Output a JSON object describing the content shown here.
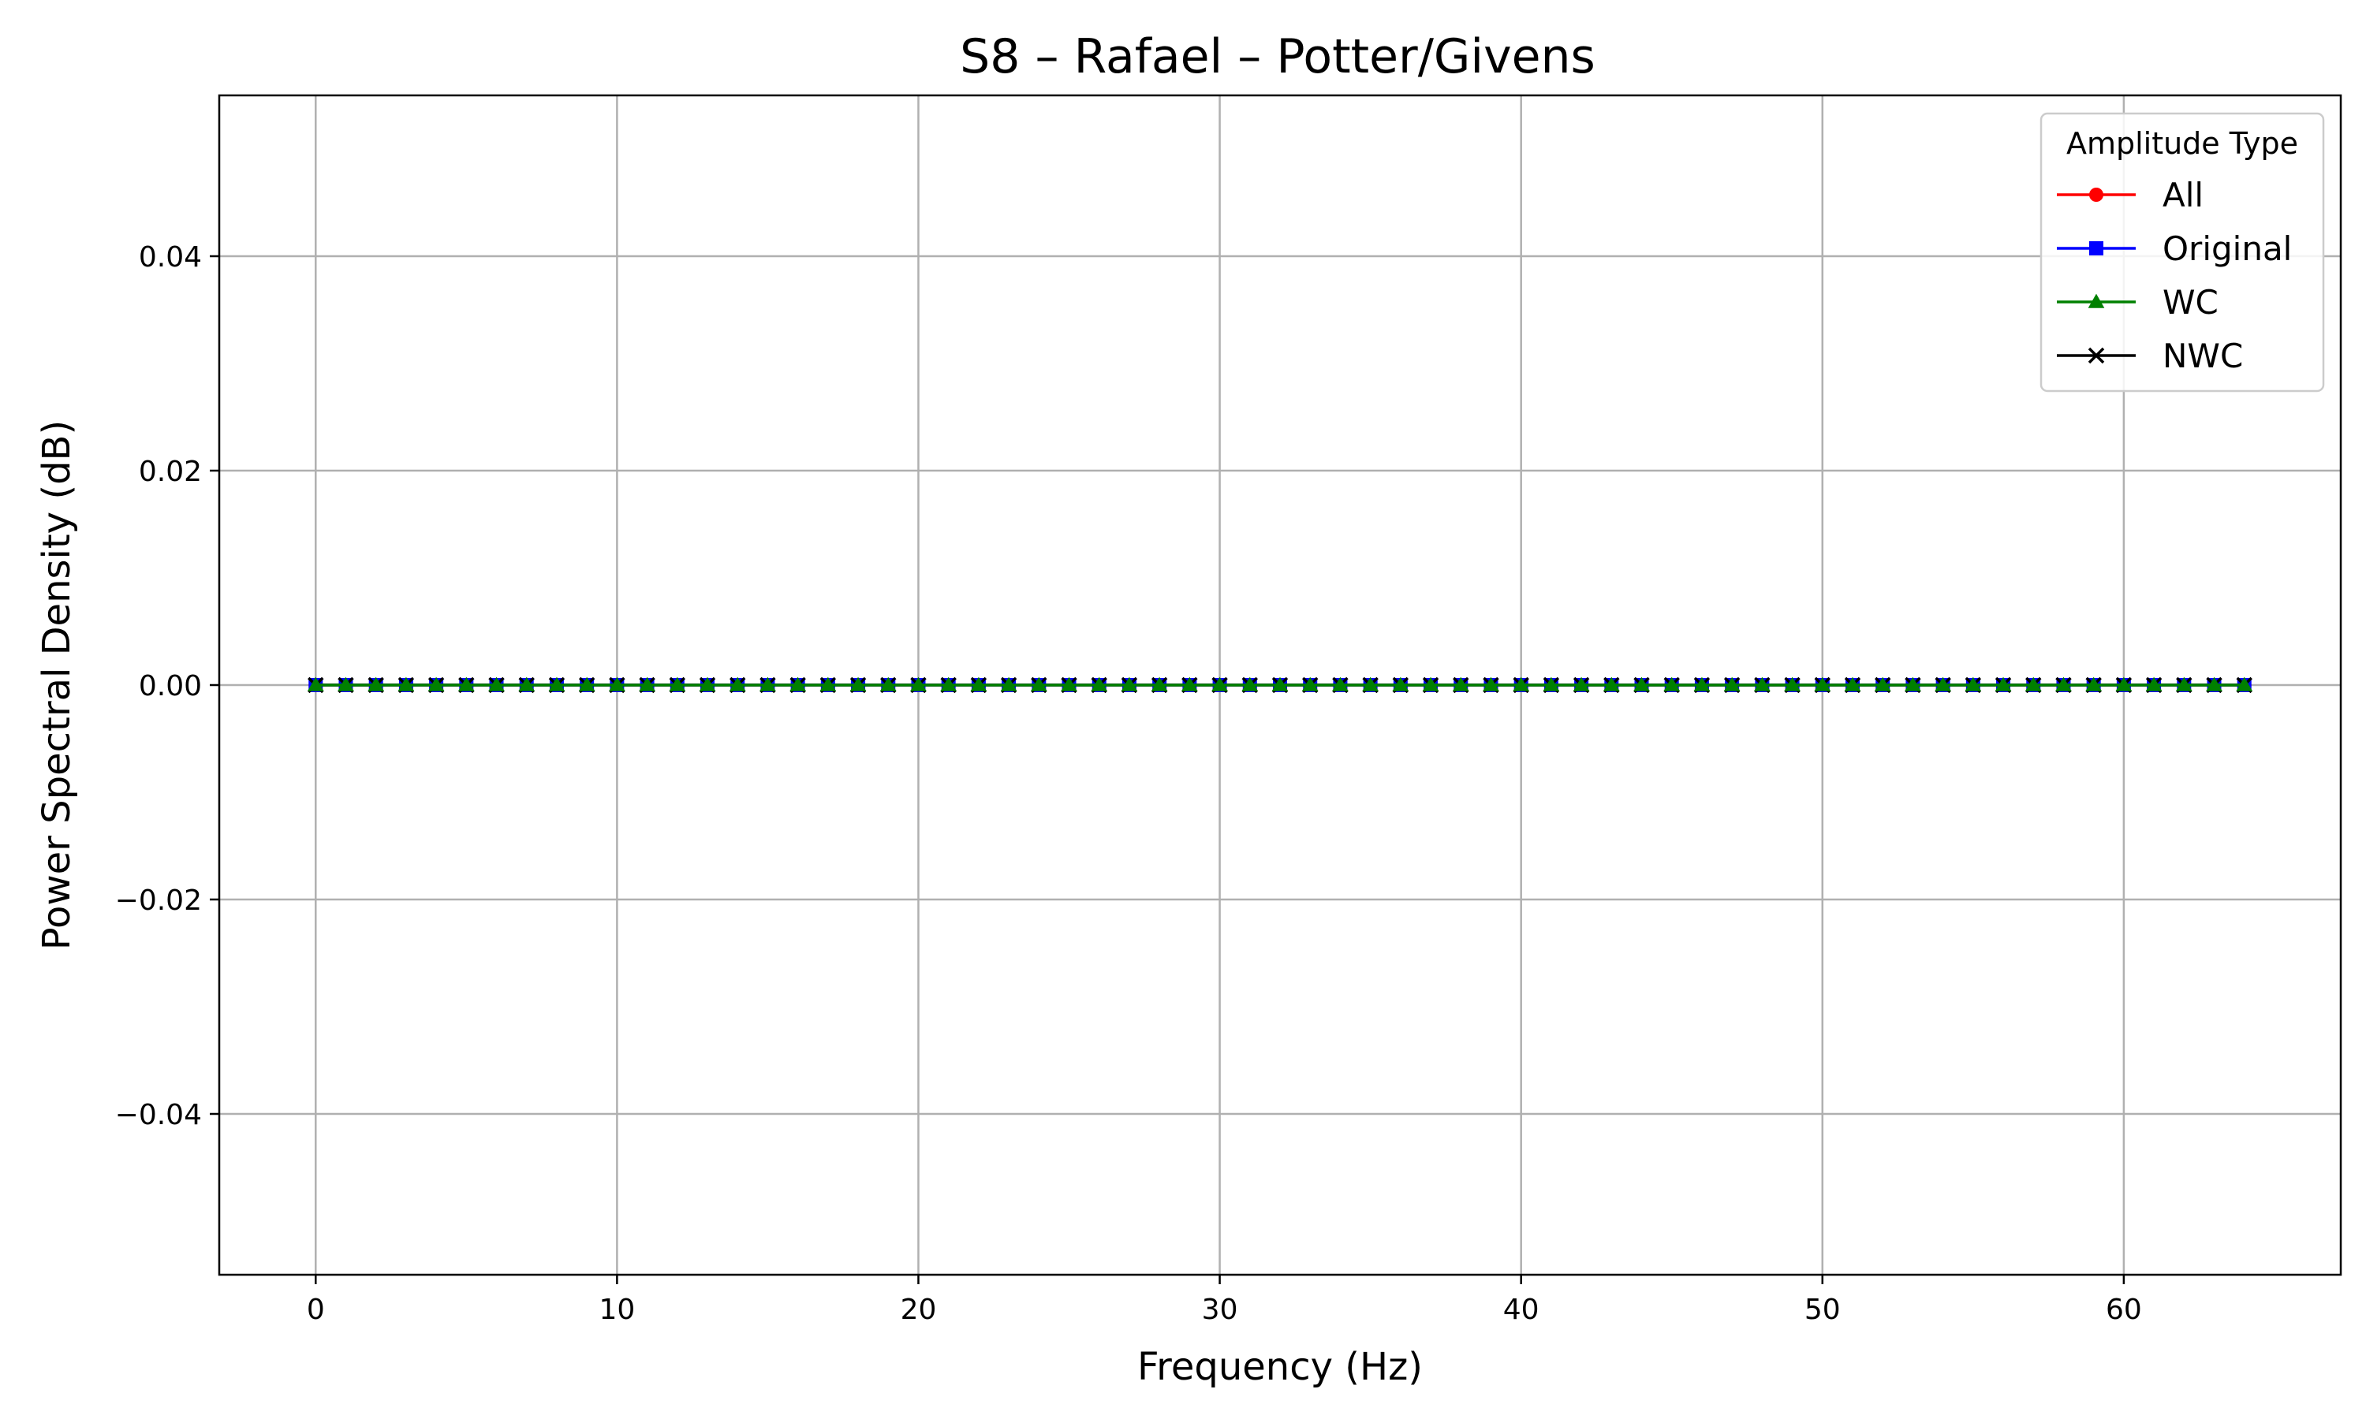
{
  "chart_data": {
    "type": "line",
    "title": "S8 – Rafael – Potter/Givens",
    "xlabel": "Frequency (Hz)",
    "ylabel": "Power Spectral Density (dB)",
    "xlim": [
      -3.2,
      67.2
    ],
    "ylim": [
      -0.055,
      0.055
    ],
    "xticks": [
      0,
      10,
      20,
      30,
      40,
      50,
      60
    ],
    "xtick_labels": [
      "0",
      "10",
      "20",
      "30",
      "40",
      "50",
      "60"
    ],
    "yticks": [
      0.04,
      0.02,
      0.0,
      -0.02,
      -0.04
    ],
    "ytick_labels": [
      "0.04",
      "0.02",
      "0.00",
      "−0.02",
      "−0.04"
    ],
    "grid": true,
    "legend": {
      "title": "Amplitude Type",
      "placement": "top-right"
    },
    "x": [
      0,
      1,
      2,
      3,
      4,
      5,
      6,
      7,
      8,
      9,
      10,
      11,
      12,
      13,
      14,
      15,
      16,
      17,
      18,
      19,
      20,
      21,
      22,
      23,
      24,
      25,
      26,
      27,
      28,
      29,
      30,
      31,
      32,
      33,
      34,
      35,
      36,
      37,
      38,
      39,
      40,
      41,
      42,
      43,
      44,
      45,
      46,
      47,
      48,
      49,
      50,
      51,
      52,
      53,
      54,
      55,
      56,
      57,
      58,
      59,
      60,
      61,
      62,
      63,
      64
    ],
    "series": [
      {
        "name": "All",
        "color": "#ff0000",
        "marker": "circle",
        "values": [
          0,
          0,
          0,
          0,
          0,
          0,
          0,
          0,
          0,
          0,
          0,
          0,
          0,
          0,
          0,
          0,
          0,
          0,
          0,
          0,
          0,
          0,
          0,
          0,
          0,
          0,
          0,
          0,
          0,
          0,
          0,
          0,
          0,
          0,
          0,
          0,
          0,
          0,
          0,
          0,
          0,
          0,
          0,
          0,
          0,
          0,
          0,
          0,
          0,
          0,
          0,
          0,
          0,
          0,
          0,
          0,
          0,
          0,
          0,
          0,
          0,
          0,
          0,
          0,
          0
        ]
      },
      {
        "name": "Original",
        "color": "#0000ff",
        "marker": "square",
        "values": [
          0,
          0,
          0,
          0,
          0,
          0,
          0,
          0,
          0,
          0,
          0,
          0,
          0,
          0,
          0,
          0,
          0,
          0,
          0,
          0,
          0,
          0,
          0,
          0,
          0,
          0,
          0,
          0,
          0,
          0,
          0,
          0,
          0,
          0,
          0,
          0,
          0,
          0,
          0,
          0,
          0,
          0,
          0,
          0,
          0,
          0,
          0,
          0,
          0,
          0,
          0,
          0,
          0,
          0,
          0,
          0,
          0,
          0,
          0,
          0,
          0,
          0,
          0,
          0,
          0
        ]
      },
      {
        "name": "NWC",
        "color": "#000000",
        "marker": "x",
        "values": [
          0,
          0,
          0,
          0,
          0,
          0,
          0,
          0,
          0,
          0,
          0,
          0,
          0,
          0,
          0,
          0,
          0,
          0,
          0,
          0,
          0,
          0,
          0,
          0,
          0,
          0,
          0,
          0,
          0,
          0,
          0,
          0,
          0,
          0,
          0,
          0,
          0,
          0,
          0,
          0,
          0,
          0,
          0,
          0,
          0,
          0,
          0,
          0,
          0,
          0,
          0,
          0,
          0,
          0,
          0,
          0,
          0,
          0,
          0,
          0,
          0,
          0,
          0,
          0,
          0
        ]
      },
      {
        "name": "WC",
        "color": "#008000",
        "marker": "triangle",
        "values": [
          0,
          0,
          0,
          0,
          0,
          0,
          0,
          0,
          0,
          0,
          0,
          0,
          0,
          0,
          0,
          0,
          0,
          0,
          0,
          0,
          0,
          0,
          0,
          0,
          0,
          0,
          0,
          0,
          0,
          0,
          0,
          0,
          0,
          0,
          0,
          0,
          0,
          0,
          0,
          0,
          0,
          0,
          0,
          0,
          0,
          0,
          0,
          0,
          0,
          0,
          0,
          0,
          0,
          0,
          0,
          0,
          0,
          0,
          0,
          0,
          0,
          0,
          0,
          0,
          0
        ]
      }
    ],
    "legend_order": [
      "All",
      "Original",
      "WC",
      "NWC"
    ]
  }
}
